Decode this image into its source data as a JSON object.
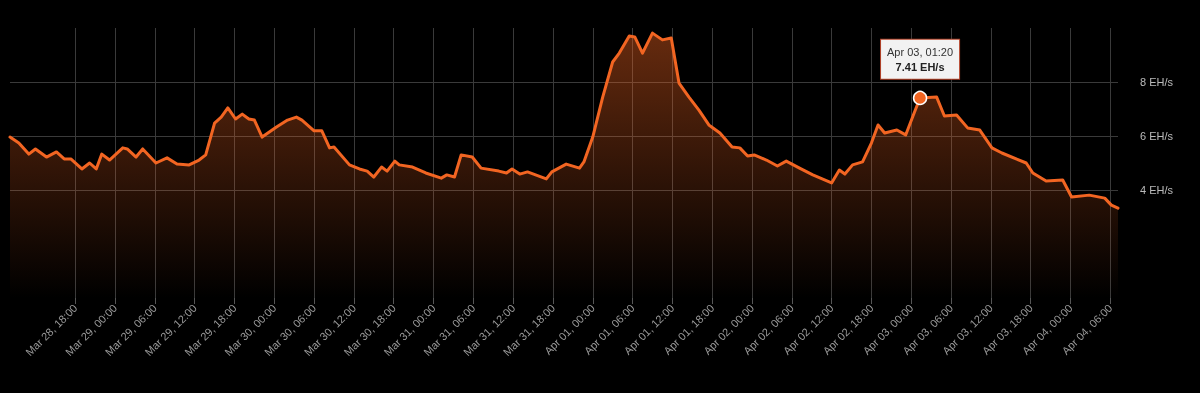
{
  "chart_data": {
    "type": "area",
    "color": "#f26522",
    "grid": true,
    "marker": "none",
    "xlim": [
      "--03-28T08:10",
      "--04-04T07:10"
    ],
    "xticks": [
      {
        "value": "--03-28T18:00",
        "label": "Mar 28, 18:00"
      },
      {
        "value": "--03-29T00:00",
        "label": "Mar 29, 00:00"
      },
      {
        "value": "--03-29T06:00",
        "label": "Mar 29, 06:00"
      },
      {
        "value": "--03-29T12:00",
        "label": "Mar 29, 12:00"
      },
      {
        "value": "--03-29T18:00",
        "label": "Mar 29, 18:00"
      },
      {
        "value": "--03-30T00:00",
        "label": "Mar 30, 00:00"
      },
      {
        "value": "--03-30T06:00",
        "label": "Mar 30, 06:00"
      },
      {
        "value": "--03-30T12:00",
        "label": "Mar 30, 12:00"
      },
      {
        "value": "--03-30T18:00",
        "label": "Mar 30, 18:00"
      },
      {
        "value": "--03-31T00:00",
        "label": "Mar 31, 00:00"
      },
      {
        "value": "--03-31T06:00",
        "label": "Mar 31, 06:00"
      },
      {
        "value": "--03-31T12:00",
        "label": "Mar 31, 12:00"
      },
      {
        "value": "--03-31T18:00",
        "label": "Mar 31, 18:00"
      },
      {
        "value": "--04-01T00:00",
        "label": "Apr 01, 00:00"
      },
      {
        "value": "--04-01T06:00",
        "label": "Apr 01, 06:00"
      },
      {
        "value": "--04-01T12:00",
        "label": "Apr 01, 12:00"
      },
      {
        "value": "--04-01T18:00",
        "label": "Apr 01, 18:00"
      },
      {
        "value": "--04-02T00:00",
        "label": "Apr 02, 00:00"
      },
      {
        "value": "--04-02T06:00",
        "label": "Apr 02, 06:00"
      },
      {
        "value": "--04-02T12:00",
        "label": "Apr 02, 12:00"
      },
      {
        "value": "--04-02T18:00",
        "label": "Apr 02, 18:00"
      },
      {
        "value": "--04-03T00:00",
        "label": "Apr 03, 00:00"
      },
      {
        "value": "--04-03T06:00",
        "label": "Apr 03, 06:00"
      },
      {
        "value": "--04-03T12:00",
        "label": "Apr 03, 12:00"
      },
      {
        "value": "--04-03T18:00",
        "label": "Apr 03, 18:00"
      },
      {
        "value": "--04-04T00:00",
        "label": "Apr 04, 00:00"
      },
      {
        "value": "--04-04T06:00",
        "label": "Apr 04, 06:00"
      }
    ],
    "ylim": [
      0,
      10
    ],
    "yticks": [
      {
        "value": 4,
        "label": "4 EH/s"
      },
      {
        "value": 6,
        "label": "6 EH/s"
      },
      {
        "value": 8,
        "label": "8 EH/s"
      }
    ],
    "annotations": [
      {
        "text": "Apr 03, 01:20\n7.41 EH/s",
        "x": "--04-03T01:20",
        "y": 7.41
      }
    ],
    "x": [
      "--03-28T08:10",
      "--03-28T09:30",
      "--03-28T11:00",
      "--03-28T12:00",
      "--03-28T13:40",
      "--03-28T15:10",
      "--03-28T16:20",
      "--03-28T17:20",
      "--03-28T19:00",
      "--03-28T20:10",
      "--03-28T21:10",
      "--03-28T22:00",
      "--03-28T23:10",
      "--03-29T01:10",
      "--03-29T01:50",
      "--03-29T03:10",
      "--03-29T04:10",
      "--03-29T06:10",
      "--03-29T07:50",
      "--03-29T09:20",
      "--03-29T11:10",
      "--03-29T12:40",
      "--03-29T13:40",
      "--03-29T15:00",
      "--03-29T16:00",
      "--03-29T17:00",
      "--03-29T18:10",
      "--03-29T19:10",
      "--03-29T20:10",
      "--03-29T21:00",
      "--03-29T22:10",
      "--03-30T00:20",
      "--03-30T02:00",
      "--03-30T03:20",
      "--03-30T04:10",
      "--03-30T06:00",
      "--03-30T07:10",
      "--03-30T08:20",
      "--03-30T09:00",
      "--03-30T11:20",
      "--03-30T12:50",
      "--03-30T14:00",
      "--03-30T15:00",
      "--03-30T16:10",
      "--03-30T17:00",
      "--03-30T18:10",
      "--03-30T18:50",
      "--03-30T20:50",
      "--03-30T22:50",
      "--03-31T01:10",
      "--03-31T02:00",
      "--03-31T03:10",
      "--03-31T04:10",
      "--03-31T05:50",
      "--03-31T07:10",
      "--03-31T09:50",
      "--03-31T11:00",
      "--03-31T11:50",
      "--03-31T13:00",
      "--03-31T14:10",
      "--03-31T17:00",
      "--03-31T17:50",
      "--03-31T20:00",
      "--03-31T22:00",
      "--03-31T22:40",
      "--04-01T00:00",
      "--04-01T01:30",
      "--04-01T03:00",
      "--04-01T04:00",
      "--04-01T05:30",
      "--04-01T06:20",
      "--04-01T07:30",
      "--04-01T09:00",
      "--04-01T10:30",
      "--04-01T11:50",
      "--04-01T13:00",
      "--04-01T14:30",
      "--04-01T16:00",
      "--04-01T17:30",
      "--04-01T19:10",
      "--04-01T21:00",
      "--04-01T22:10",
      "--04-01T23:20",
      "--04-02T00:20",
      "--04-02T02:10",
      "--04-02T03:50",
      "--04-02T05:10",
      "--04-02T07:10",
      "--04-02T09:10",
      "--04-02T12:00",
      "--04-02T13:10",
      "--04-02T14:00",
      "--04-02T15:10",
      "--04-02T16:40",
      "--04-02T18:00",
      "--04-02T19:00",
      "--04-02T20:00",
      "--04-02T21:50",
      "--04-02T23:10",
      "--04-03T00:30",
      "--04-03T01:20",
      "--04-03T03:50",
      "--04-03T05:00",
      "--04-03T06:50",
      "--04-03T08:30",
      "--04-03T10:20",
      "--04-03T12:10",
      "--04-03T13:40",
      "--04-03T17:20",
      "--04-03T18:20",
      "--04-03T20:20",
      "--04-03T22:50",
      "--04-04T00:10",
      "--04-04T02:50",
      "--04-04T05:10",
      "--04-04T06:10",
      "--04-04T07:10"
    ],
    "values": [
      5.96,
      5.74,
      5.33,
      5.52,
      5.22,
      5.41,
      5.15,
      5.15,
      4.78,
      5.0,
      4.78,
      5.33,
      5.11,
      5.56,
      5.52,
      5.22,
      5.52,
      5.0,
      5.19,
      4.96,
      4.93,
      5.11,
      5.3,
      6.48,
      6.7,
      7.04,
      6.63,
      6.81,
      6.63,
      6.59,
      5.96,
      6.33,
      6.59,
      6.7,
      6.59,
      6.19,
      6.19,
      5.56,
      5.59,
      4.93,
      4.78,
      4.7,
      4.48,
      4.85,
      4.7,
      5.07,
      4.93,
      4.85,
      4.63,
      4.44,
      4.56,
      4.48,
      5.3,
      5.22,
      4.81,
      4.7,
      4.63,
      4.78,
      4.59,
      4.67,
      4.41,
      4.67,
      4.96,
      4.81,
      5.04,
      5.96,
      7.44,
      8.74,
      9.07,
      9.7,
      9.67,
      9.07,
      9.81,
      9.56,
      9.63,
      7.96,
      7.44,
      6.96,
      6.41,
      6.11,
      5.59,
      5.56,
      5.26,
      5.3,
      5.11,
      4.89,
      5.07,
      4.81,
      4.56,
      4.26,
      4.74,
      4.59,
      4.93,
      5.04,
      5.74,
      6.41,
      6.11,
      6.22,
      6.04,
      6.89,
      7.41,
      7.44,
      6.74,
      6.78,
      6.3,
      6.22,
      5.56,
      5.37,
      5.0,
      4.63,
      4.33,
      4.37,
      3.74,
      3.81,
      3.7,
      3.44,
      3.33
    ]
  }
}
